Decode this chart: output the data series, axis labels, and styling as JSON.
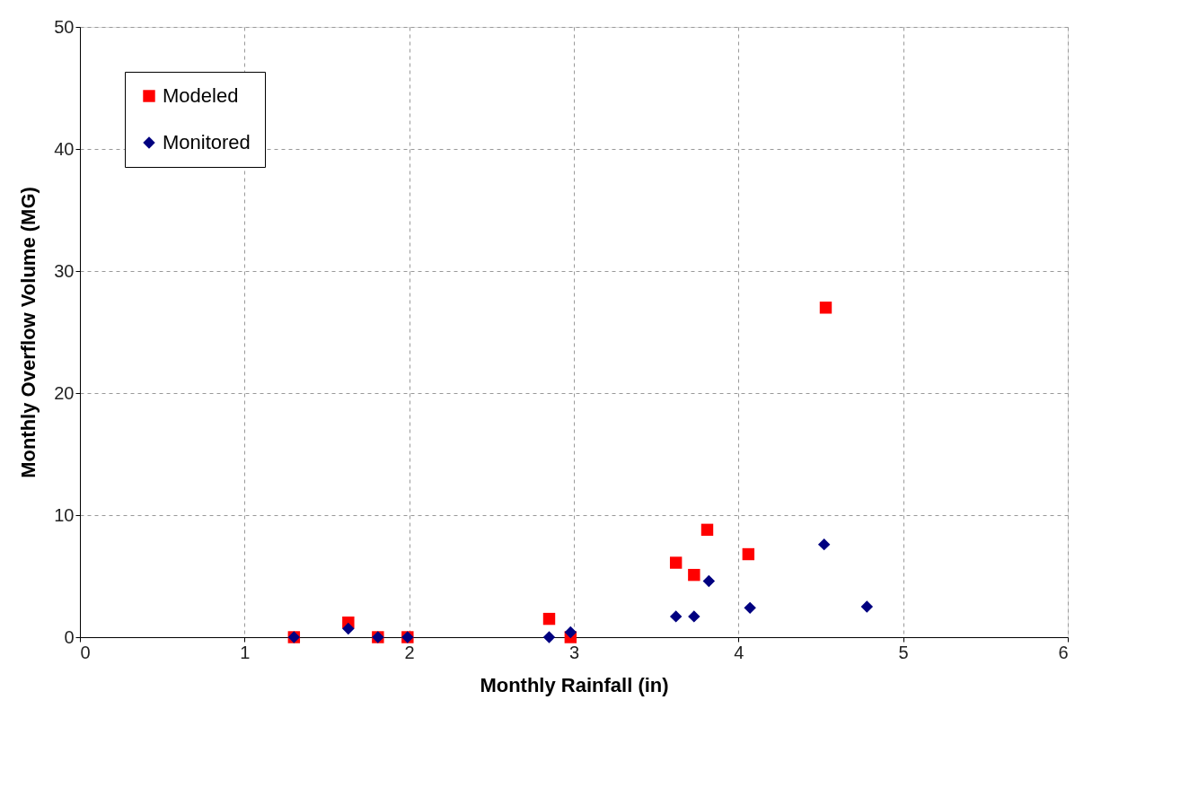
{
  "chart_data": {
    "type": "scatter",
    "xlabel": "Monthly Rainfall (in)",
    "ylabel": "Monthly Overflow Volume (MG)",
    "xlim": [
      0,
      6
    ],
    "xticks": [
      0,
      1,
      2,
      3,
      4,
      5,
      6
    ],
    "ylim": [
      0,
      50
    ],
    "yticks": [
      0,
      10,
      20,
      30,
      40,
      50
    ],
    "grid": true,
    "legend": "top left",
    "series": [
      {
        "name": "Modeled",
        "color": "#ff0000",
        "marker": "square",
        "x": [
          1.3,
          1.63,
          1.81,
          1.99,
          2.85,
          2.98,
          3.62,
          3.73,
          3.81,
          4.06,
          4.53
        ],
        "values": [
          0,
          1.2,
          0,
          0,
          1.5,
          0,
          6.1,
          5.1,
          8.8,
          6.8,
          27.0
        ]
      },
      {
        "name": "Monitored",
        "color": "#000080",
        "marker": "diamond",
        "x": [
          1.3,
          1.63,
          1.81,
          1.99,
          2.85,
          2.98,
          3.62,
          3.73,
          3.82,
          4.07,
          4.52,
          4.78
        ],
        "values": [
          0,
          0.7,
          0,
          0,
          0,
          0.4,
          1.7,
          1.7,
          4.6,
          2.4,
          7.6,
          2.5
        ]
      }
    ]
  }
}
